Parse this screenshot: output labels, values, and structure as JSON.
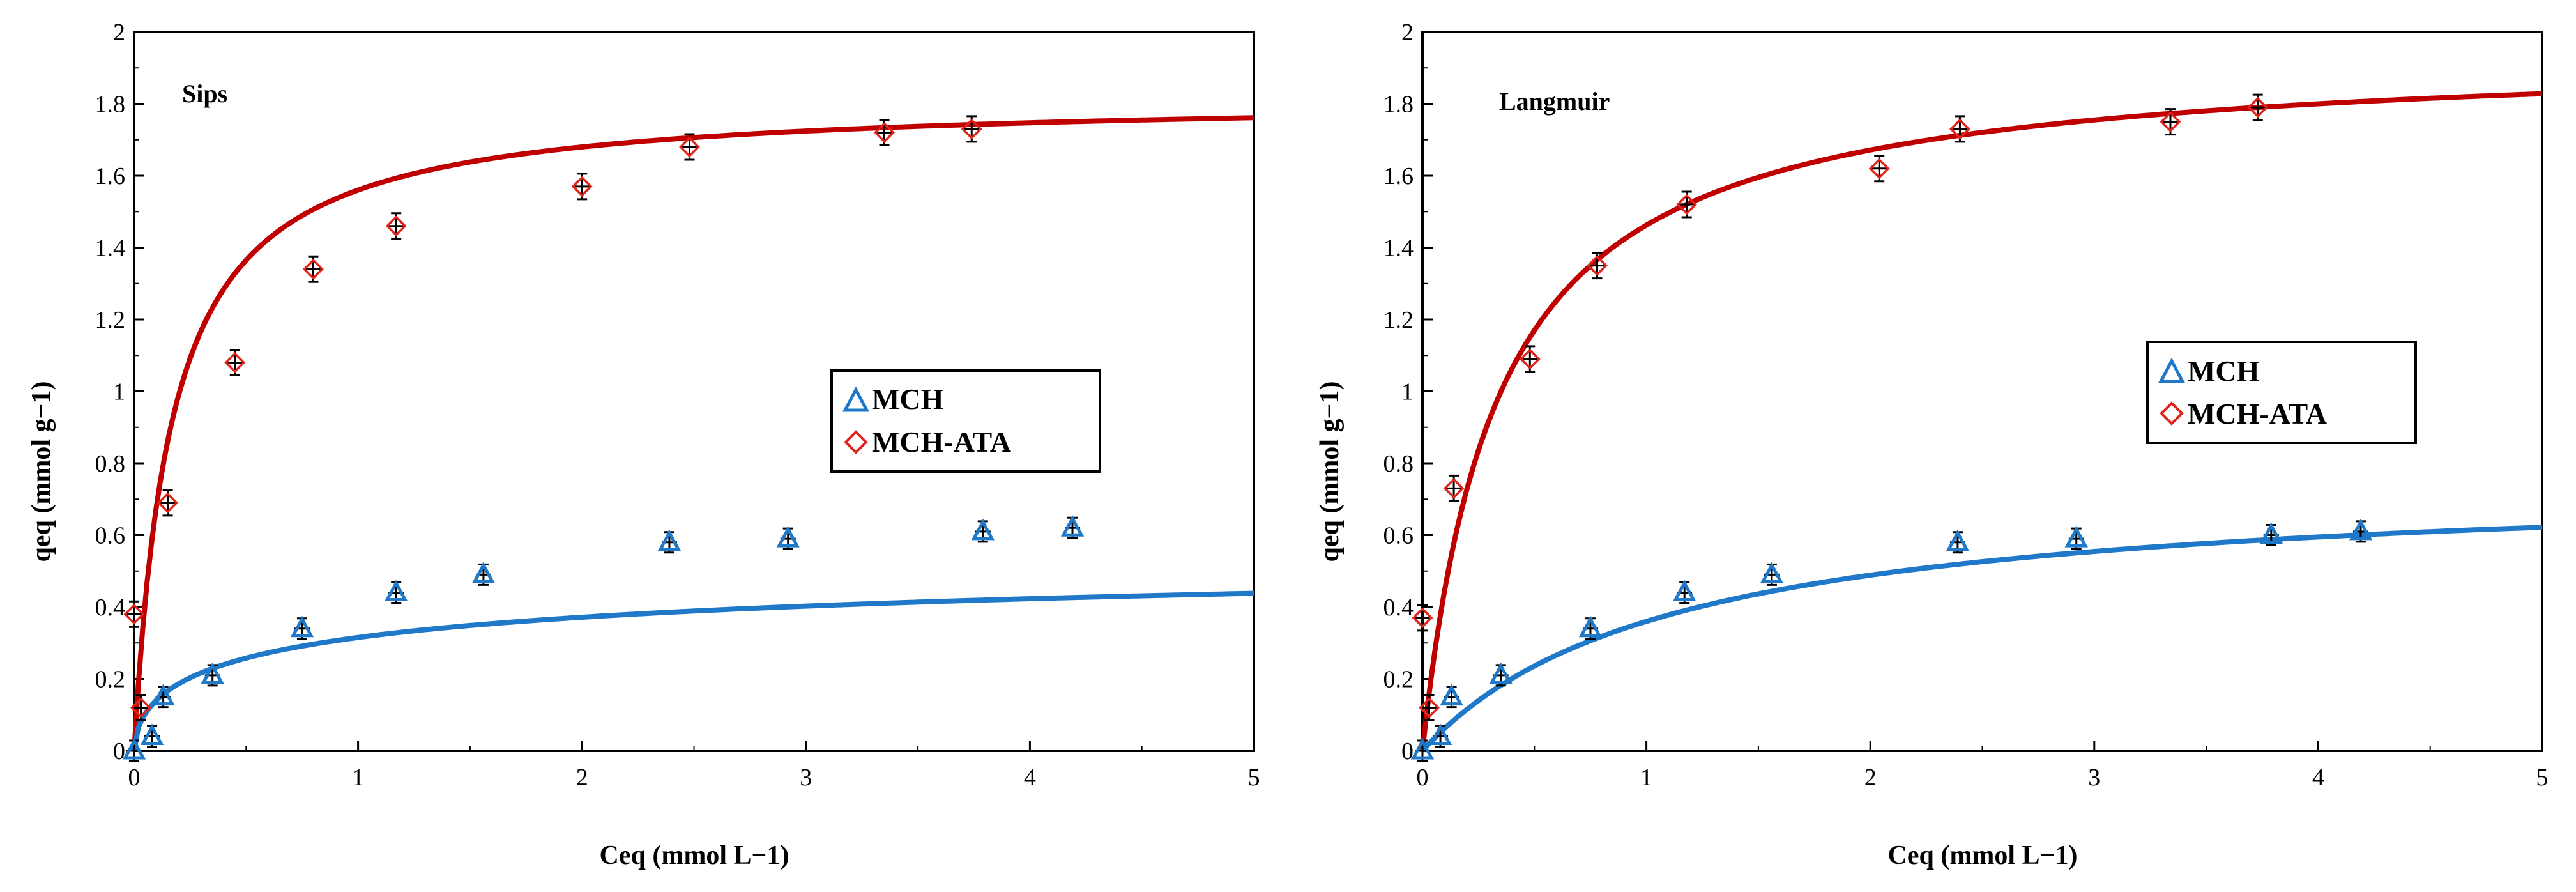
{
  "colors": {
    "mch": "#1f78c8",
    "mch_ata": "#e0231b",
    "fit_mch": "#1f78c8",
    "fit_mch_ata": "#c00000",
    "error_bar": "#000000"
  },
  "chart_data": [
    {
      "type": "scatter",
      "model_label": "Sips",
      "xlabel": "Ceq (mmol L−1)",
      "ylabel": "qeq (mmol g−1)",
      "xlim": [
        0,
        5
      ],
      "ylim": [
        0,
        2
      ],
      "x_ticks": [
        "0",
        "1",
        "2",
        "3",
        "4",
        "5"
      ],
      "y_ticks": [
        "0",
        "0.2",
        "0.4",
        "0.6",
        "0.8",
        "1",
        "1.2",
        "1.4",
        "1.6",
        "1.8",
        "2"
      ],
      "grid": false,
      "legend_position": "right-middle",
      "series": [
        {
          "name": "MCH",
          "marker": "triangle",
          "x": [
            0,
            0.08,
            0.13,
            0.35,
            0.75,
            1.17,
            1.56,
            2.39,
            2.92,
            3.79,
            4.19
          ],
          "y": [
            0,
            0.04,
            0.15,
            0.21,
            0.34,
            0.44,
            0.49,
            0.58,
            0.59,
            0.61,
            0.62
          ]
        },
        {
          "name": "MCH-ATA",
          "marker": "diamond",
          "x": [
            0,
            0.03,
            0.15,
            0.45,
            0.8,
            1.17,
            2.0,
            2.48,
            3.35,
            3.74
          ],
          "y": [
            0.38,
            0.12,
            0.69,
            1.08,
            1.34,
            1.46,
            1.57,
            1.68,
            1.72,
            1.73
          ]
        }
      ],
      "fits": [
        {
          "series": "MCH-ATA",
          "model": "sips",
          "qm": 1.82,
          "K": 6.0,
          "n": 1.0
        },
        {
          "series": "MCH",
          "model": "sips",
          "qm": 0.6,
          "K": 1.2,
          "n": 1.8
        }
      ]
    },
    {
      "type": "scatter",
      "model_label": "Langmuir",
      "xlabel": "Ceq (mmol L−1)",
      "ylabel": "qeq (mmol g−1)",
      "xlim": [
        0,
        5
      ],
      "ylim": [
        0,
        2
      ],
      "x_ticks": [
        "0",
        "1",
        "2",
        "3",
        "4",
        "5"
      ],
      "y_ticks": [
        "0",
        "0.2",
        "0.4",
        "0.6",
        "0.8",
        "1",
        "1.2",
        "1.4",
        "1.6",
        "1.8",
        "2"
      ],
      "grid": false,
      "legend_position": "right-middle",
      "series": [
        {
          "name": "MCH",
          "marker": "triangle",
          "x": [
            0,
            0.08,
            0.13,
            0.35,
            0.75,
            1.17,
            1.56,
            2.39,
            2.92,
            3.79,
            4.19
          ],
          "y": [
            0,
            0.04,
            0.15,
            0.21,
            0.34,
            0.44,
            0.49,
            0.58,
            0.59,
            0.6,
            0.61
          ]
        },
        {
          "name": "MCH-ATA",
          "marker": "diamond",
          "x": [
            0,
            0.03,
            0.14,
            0.48,
            0.78,
            1.18,
            2.04,
            2.4,
            3.34,
            3.73
          ],
          "y": [
            0.37,
            0.12,
            0.73,
            1.09,
            1.35,
            1.52,
            1.62,
            1.73,
            1.75,
            1.79
          ]
        }
      ],
      "fits": [
        {
          "series": "MCH-ATA",
          "model": "langmuir",
          "qm": 1.95,
          "K": 3.0
        },
        {
          "series": "MCH",
          "model": "langmuir",
          "qm": 0.76,
          "K": 0.9
        }
      ]
    }
  ]
}
